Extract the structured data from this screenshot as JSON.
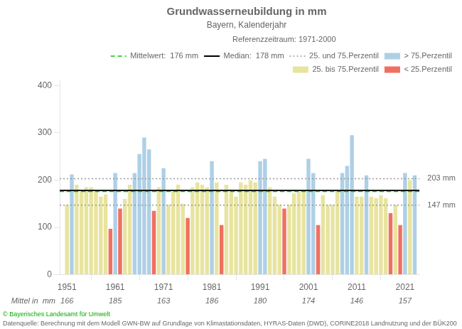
{
  "chart_data": {
    "type": "bar",
    "title": "Grundwasserneubildung in mm",
    "subtitle": "Bayern, Kalenderjahr",
    "x": [
      1951,
      1952,
      1953,
      1954,
      1955,
      1956,
      1957,
      1958,
      1959,
      1960,
      1961,
      1962,
      1963,
      1964,
      1965,
      1966,
      1967,
      1968,
      1969,
      1970,
      1971,
      1972,
      1973,
      1974,
      1975,
      1976,
      1977,
      1978,
      1979,
      1980,
      1981,
      1982,
      1983,
      1984,
      1985,
      1986,
      1987,
      1988,
      1989,
      1990,
      1991,
      1992,
      1993,
      1994,
      1995,
      1996,
      1997,
      1998,
      1999,
      2000,
      2001,
      2002,
      2003,
      2004,
      2005,
      2006,
      2007,
      2008,
      2009,
      2010,
      2011,
      2012,
      2013,
      2014,
      2015,
      2016,
      2017,
      2018,
      2019,
      2020,
      2021,
      2022,
      2023
    ],
    "series": [
      {
        "name": "> 75.Perzentil",
        "color": "#aed0e6",
        "values": [
          null,
          212,
          null,
          null,
          null,
          null,
          null,
          null,
          null,
          null,
          215,
          null,
          null,
          null,
          215,
          255,
          290,
          265,
          null,
          null,
          225,
          null,
          null,
          null,
          null,
          null,
          null,
          null,
          null,
          null,
          240,
          null,
          null,
          null,
          null,
          null,
          null,
          null,
          null,
          null,
          240,
          245,
          null,
          null,
          null,
          null,
          null,
          null,
          null,
          null,
          245,
          215,
          null,
          null,
          null,
          null,
          null,
          215,
          230,
          295,
          null,
          null,
          210,
          null,
          null,
          null,
          null,
          null,
          null,
          null,
          215,
          null,
          210
        ]
      },
      {
        "name": "25. bis 75.Perzentil",
        "color": "#e8e4a0",
        "values": [
          148,
          null,
          190,
          175,
          185,
          185,
          175,
          165,
          170,
          null,
          null,
          null,
          160,
          190,
          null,
          null,
          null,
          null,
          null,
          185,
          null,
          148,
          175,
          190,
          150,
          null,
          185,
          195,
          190,
          185,
          null,
          195,
          null,
          190,
          175,
          165,
          195,
          190,
          200,
          195,
          null,
          null,
          185,
          165,
          148,
          null,
          148,
          172,
          175,
          175,
          null,
          null,
          null,
          168,
          148,
          148,
          175,
          null,
          null,
          null,
          165,
          165,
          null,
          165,
          162,
          168,
          162,
          null,
          148,
          null,
          null,
          200,
          null
        ]
      },
      {
        "name": "< 25.Perzentil",
        "color": "#f07060",
        "values": [
          null,
          null,
          null,
          null,
          null,
          null,
          null,
          null,
          null,
          97,
          null,
          140,
          null,
          null,
          null,
          null,
          null,
          null,
          135,
          null,
          null,
          null,
          null,
          null,
          null,
          120,
          null,
          null,
          null,
          null,
          null,
          null,
          105,
          null,
          null,
          null,
          null,
          null,
          null,
          null,
          null,
          null,
          null,
          null,
          null,
          140,
          null,
          null,
          null,
          null,
          null,
          null,
          105,
          null,
          null,
          null,
          null,
          null,
          null,
          null,
          null,
          null,
          null,
          null,
          null,
          null,
          null,
          130,
          null,
          105,
          null,
          null,
          null
        ]
      }
    ],
    "reference_lines": [
      {
        "name": "Mittelwert:  176 mm",
        "values": [
          176
        ],
        "color": "#00cc00",
        "line_style": "dashed"
      },
      {
        "name": "Median:  178 mm",
        "values": [
          178
        ],
        "color": "#000000",
        "line_style": "solid"
      },
      {
        "name": "25. und 75.Perzentil",
        "values": [
          147,
          203
        ],
        "color": "#999999",
        "line_style": "dotted"
      }
    ],
    "annotations": [
      {
        "text": "203 mm",
        "y": 203
      },
      {
        "text": "147 mm",
        "y": 147
      }
    ],
    "xlim": [
      1949.5,
      2024.0
    ],
    "xticks": [
      1951,
      1961,
      1971,
      1981,
      1991,
      2001,
      2011,
      2021
    ],
    "ylim": [
      0,
      410
    ],
    "yticks": [
      0,
      100,
      200,
      300,
      400
    ],
    "grid": false,
    "legend": "upper right",
    "legend_title": "Referenzzeitraum: 1971-2000",
    "decade_means": {
      "label": "Mittel in  mm",
      "x": [
        1951,
        1961,
        1971,
        1981,
        1991,
        2001,
        2011,
        2021
      ],
      "values": [
        166,
        185,
        163,
        186,
        180,
        174,
        146,
        157
      ]
    },
    "watermark": {
      "text": "© Bayerisches Landesamt für Umwelt",
      "color": "#00aa00"
    },
    "footnote": "Datenquelle: Berechnung mit dem Modell GWN-BW auf Grundlage von Klimastationsdaten, HYRAS-Daten (DWD), CORINE2018 Landnutzung und der BÜK200"
  }
}
